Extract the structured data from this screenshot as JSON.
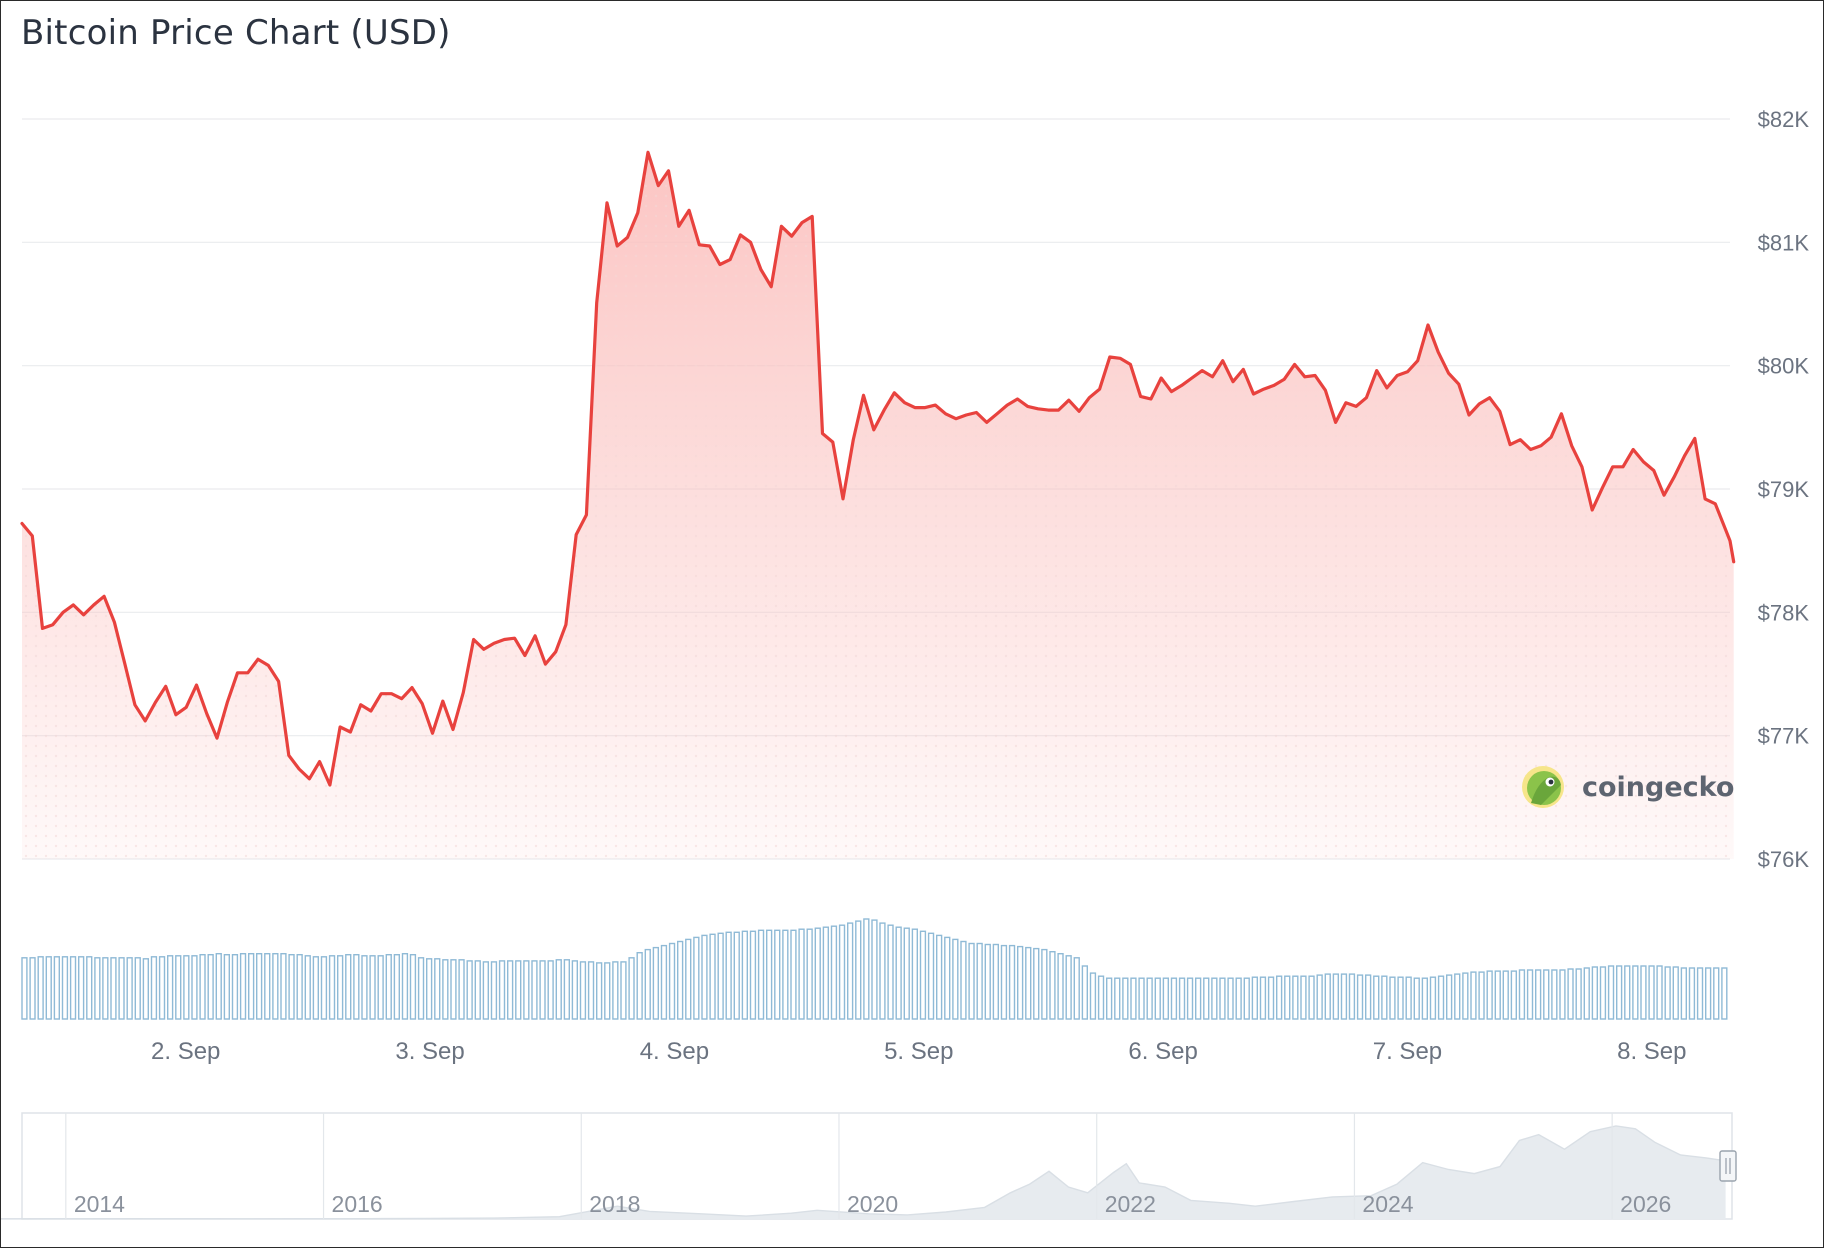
{
  "title": "Bitcoin Price Chart (USD)",
  "brand": {
    "name": "coingecko",
    "icon": "gecko-logo-icon"
  },
  "colors": {
    "line": "#e8423e",
    "area_top": "#fbc8c6",
    "grid": "#e9ebee",
    "volume": "#8fbad6",
    "navigator_fill": "#e7ebef",
    "navigator_line": "#d9dfe5"
  },
  "chart_data": {
    "type": "line",
    "title": "Bitcoin Price Chart (USD)",
    "ylim": [
      76000,
      82000
    ],
    "y_ticks": [
      {
        "value": 82000,
        "label": "$82K"
      },
      {
        "value": 81000,
        "label": "$81K"
      },
      {
        "value": 80000,
        "label": "$80K"
      },
      {
        "value": 79000,
        "label": "$79K"
      },
      {
        "value": 78000,
        "label": "$78K"
      },
      {
        "value": 77000,
        "label": "$77K"
      },
      {
        "value": 76000,
        "label": "$76K"
      }
    ],
    "x_range_days": [
      1.33,
      8.32
    ],
    "x_ticks": [
      {
        "day": 2,
        "label": "2. Sep"
      },
      {
        "day": 3,
        "label": "3. Sep"
      },
      {
        "day": 4,
        "label": "4. Sep"
      },
      {
        "day": 5,
        "label": "5. Sep"
      },
      {
        "day": 6,
        "label": "6. Sep"
      },
      {
        "day": 7,
        "label": "7. Sep"
      },
      {
        "day": 8,
        "label": "8. Sep"
      }
    ],
    "series": [
      {
        "points": [
          [
            1.33,
            78720
          ],
          [
            1.372,
            78620
          ],
          [
            1.414,
            77870
          ],
          [
            1.456,
            77900
          ],
          [
            1.498,
            78000
          ],
          [
            1.54,
            78060
          ],
          [
            1.582,
            77980
          ],
          [
            1.624,
            78060
          ],
          [
            1.666,
            78130
          ],
          [
            1.708,
            77920
          ],
          [
            1.75,
            77590
          ],
          [
            1.792,
            77250
          ],
          [
            1.834,
            77120
          ],
          [
            1.876,
            77270
          ],
          [
            1.918,
            77400
          ],
          [
            1.96,
            77170
          ],
          [
            2.002,
            77230
          ],
          [
            2.044,
            77410
          ],
          [
            2.086,
            77180
          ],
          [
            2.128,
            76980
          ],
          [
            2.17,
            77270
          ],
          [
            2.212,
            77510
          ],
          [
            2.254,
            77510
          ],
          [
            2.296,
            77620
          ],
          [
            2.338,
            77570
          ],
          [
            2.38,
            77440
          ],
          [
            2.422,
            76840
          ],
          [
            2.464,
            76730
          ],
          [
            2.506,
            76650
          ],
          [
            2.548,
            76790
          ],
          [
            2.59,
            76600
          ],
          [
            2.632,
            77070
          ],
          [
            2.674,
            77030
          ],
          [
            2.716,
            77250
          ],
          [
            2.758,
            77200
          ],
          [
            2.8,
            77340
          ],
          [
            2.842,
            77340
          ],
          [
            2.884,
            77300
          ],
          [
            2.926,
            77390
          ],
          [
            2.968,
            77260
          ],
          [
            3.01,
            77020
          ],
          [
            3.052,
            77280
          ],
          [
            3.094,
            77050
          ],
          [
            3.136,
            77350
          ],
          [
            3.178,
            77780
          ],
          [
            3.22,
            77700
          ],
          [
            3.262,
            77750
          ],
          [
            3.304,
            77780
          ],
          [
            3.346,
            77790
          ],
          [
            3.388,
            77650
          ],
          [
            3.43,
            77810
          ],
          [
            3.472,
            77580
          ],
          [
            3.514,
            77680
          ],
          [
            3.556,
            77900
          ],
          [
            3.598,
            78630
          ],
          [
            3.64,
            78790
          ],
          [
            3.682,
            80510
          ],
          [
            3.724,
            81320
          ],
          [
            3.766,
            80970
          ],
          [
            3.808,
            81040
          ],
          [
            3.85,
            81240
          ],
          [
            3.892,
            81730
          ],
          [
            3.934,
            81460
          ],
          [
            3.976,
            81580
          ],
          [
            4.018,
            81130
          ],
          [
            4.06,
            81260
          ],
          [
            4.102,
            80980
          ],
          [
            4.144,
            80970
          ],
          [
            4.186,
            80820
          ],
          [
            4.228,
            80860
          ],
          [
            4.27,
            81060
          ],
          [
            4.312,
            81000
          ],
          [
            4.354,
            80780
          ],
          [
            4.396,
            80640
          ],
          [
            4.438,
            81130
          ],
          [
            4.48,
            81050
          ],
          [
            4.522,
            81160
          ],
          [
            4.564,
            81210
          ],
          [
            4.606,
            79450
          ],
          [
            4.648,
            79380
          ],
          [
            4.69,
            78920
          ],
          [
            4.732,
            79400
          ],
          [
            4.774,
            79760
          ],
          [
            4.816,
            79480
          ],
          [
            4.858,
            79640
          ],
          [
            4.9,
            79780
          ],
          [
            4.942,
            79700
          ],
          [
            4.984,
            79660
          ],
          [
            5.026,
            79660
          ],
          [
            5.068,
            79680
          ],
          [
            5.11,
            79610
          ],
          [
            5.152,
            79570
          ],
          [
            5.194,
            79600
          ],
          [
            5.236,
            79620
          ],
          [
            5.278,
            79540
          ],
          [
            5.32,
            79610
          ],
          [
            5.362,
            79680
          ],
          [
            5.404,
            79730
          ],
          [
            5.446,
            79670
          ],
          [
            5.488,
            79650
          ],
          [
            5.53,
            79640
          ],
          [
            5.572,
            79640
          ],
          [
            5.614,
            79720
          ],
          [
            5.656,
            79630
          ],
          [
            5.698,
            79740
          ],
          [
            5.74,
            79810
          ],
          [
            5.782,
            80070
          ],
          [
            5.824,
            80060
          ],
          [
            5.866,
            80010
          ],
          [
            5.908,
            79750
          ],
          [
            5.95,
            79730
          ],
          [
            5.992,
            79900
          ],
          [
            6.034,
            79790
          ],
          [
            6.076,
            79840
          ],
          [
            6.118,
            79900
          ],
          [
            6.16,
            79960
          ],
          [
            6.202,
            79910
          ],
          [
            6.244,
            80040
          ],
          [
            6.286,
            79870
          ],
          [
            6.328,
            79970
          ],
          [
            6.37,
            79770
          ],
          [
            6.412,
            79810
          ],
          [
            6.454,
            79840
          ],
          [
            6.496,
            79890
          ],
          [
            6.538,
            80010
          ],
          [
            6.58,
            79910
          ],
          [
            6.622,
            79920
          ],
          [
            6.664,
            79800
          ],
          [
            6.706,
            79540
          ],
          [
            6.748,
            79700
          ],
          [
            6.79,
            79670
          ],
          [
            6.832,
            79740
          ],
          [
            6.874,
            79960
          ],
          [
            6.916,
            79820
          ],
          [
            6.958,
            79920
          ],
          [
            7.0,
            79950
          ],
          [
            7.042,
            80040
          ],
          [
            7.084,
            80330
          ],
          [
            7.126,
            80110
          ],
          [
            7.168,
            79940
          ],
          [
            7.21,
            79850
          ],
          [
            7.252,
            79600
          ],
          [
            7.294,
            79690
          ],
          [
            7.336,
            79740
          ],
          [
            7.378,
            79630
          ],
          [
            7.42,
            79360
          ],
          [
            7.462,
            79400
          ],
          [
            7.504,
            79320
          ],
          [
            7.546,
            79350
          ],
          [
            7.588,
            79420
          ],
          [
            7.63,
            79610
          ],
          [
            7.672,
            79350
          ],
          [
            7.714,
            79180
          ],
          [
            7.756,
            78830
          ],
          [
            7.798,
            79010
          ],
          [
            7.84,
            79180
          ],
          [
            7.882,
            79180
          ],
          [
            7.924,
            79320
          ],
          [
            7.966,
            79220
          ],
          [
            8.008,
            79150
          ],
          [
            8.05,
            78950
          ],
          [
            8.092,
            79100
          ],
          [
            8.134,
            79270
          ],
          [
            8.176,
            79410
          ],
          [
            8.218,
            78920
          ],
          [
            8.26,
            78880
          ],
          [
            8.302,
            78670
          ],
          [
            8.32,
            78580
          ],
          [
            8.335,
            78410
          ]
        ]
      }
    ],
    "volume": [
      0.6,
      0.6,
      0.61,
      0.61,
      0.61,
      0.61,
      0.61,
      0.61,
      0.61,
      0.6,
      0.6,
      0.6,
      0.6,
      0.6,
      0.6,
      0.59,
      0.61,
      0.61,
      0.62,
      0.62,
      0.62,
      0.62,
      0.63,
      0.63,
      0.64,
      0.63,
      0.63,
      0.64,
      0.64,
      0.64,
      0.64,
      0.64,
      0.64,
      0.63,
      0.63,
      0.62,
      0.61,
      0.61,
      0.62,
      0.62,
      0.63,
      0.63,
      0.62,
      0.62,
      0.62,
      0.63,
      0.63,
      0.64,
      0.63,
      0.6,
      0.59,
      0.59,
      0.58,
      0.58,
      0.58,
      0.57,
      0.57,
      0.56,
      0.56,
      0.57,
      0.57,
      0.57,
      0.57,
      0.57,
      0.57,
      0.57,
      0.58,
      0.58,
      0.57,
      0.56,
      0.56,
      0.55,
      0.55,
      0.56,
      0.56,
      0.6,
      0.65,
      0.68,
      0.7,
      0.72,
      0.74,
      0.76,
      0.78,
      0.8,
      0.82,
      0.83,
      0.84,
      0.85,
      0.85,
      0.86,
      0.86,
      0.87,
      0.87,
      0.87,
      0.87,
      0.87,
      0.88,
      0.88,
      0.89,
      0.9,
      0.91,
      0.92,
      0.94,
      0.96,
      0.98,
      0.97,
      0.94,
      0.92,
      0.9,
      0.89,
      0.88,
      0.86,
      0.84,
      0.82,
      0.8,
      0.78,
      0.76,
      0.74,
      0.74,
      0.73,
      0.73,
      0.72,
      0.72,
      0.71,
      0.7,
      0.69,
      0.68,
      0.66,
      0.64,
      0.62,
      0.6,
      0.52,
      0.45,
      0.42,
      0.4,
      0.4,
      0.4,
      0.4,
      0.4,
      0.4,
      0.4,
      0.4,
      0.4,
      0.4,
      0.4,
      0.4,
      0.4,
      0.4,
      0.4,
      0.4,
      0.4,
      0.4,
      0.41,
      0.41,
      0.41,
      0.42,
      0.42,
      0.42,
      0.42,
      0.42,
      0.43,
      0.44,
      0.44,
      0.44,
      0.44,
      0.43,
      0.43,
      0.42,
      0.42,
      0.41,
      0.41,
      0.41,
      0.4,
      0.4,
      0.41,
      0.42,
      0.43,
      0.44,
      0.45,
      0.46,
      0.46,
      0.47,
      0.47,
      0.47,
      0.47,
      0.48,
      0.48,
      0.48,
      0.48,
      0.48,
      0.48,
      0.49,
      0.49,
      0.5,
      0.51,
      0.51,
      0.52,
      0.52,
      0.52,
      0.52,
      0.52,
      0.52,
      0.52,
      0.51,
      0.51,
      0.5,
      0.5,
      0.5,
      0.5,
      0.5,
      0.5
    ],
    "navigator": {
      "labels": [
        "2014",
        "2016",
        "2018",
        "2020",
        "2022",
        "2024",
        "2026"
      ],
      "series": [
        [
          2013.0,
          0.002
        ],
        [
          2014.0,
          0.005
        ],
        [
          2015.0,
          0.004
        ],
        [
          2016.0,
          0.006
        ],
        [
          2016.5,
          0.01
        ],
        [
          2017.0,
          0.015
        ],
        [
          2017.5,
          0.04
        ],
        [
          2017.95,
          0.22
        ],
        [
          2018.2,
          0.13
        ],
        [
          2018.6,
          0.09
        ],
        [
          2018.95,
          0.05
        ],
        [
          2019.3,
          0.1
        ],
        [
          2019.5,
          0.15
        ],
        [
          2019.9,
          0.09
        ],
        [
          2020.2,
          0.07
        ],
        [
          2020.5,
          0.12
        ],
        [
          2020.8,
          0.2
        ],
        [
          2021.0,
          0.45
        ],
        [
          2021.15,
          0.6
        ],
        [
          2021.3,
          0.82
        ],
        [
          2021.45,
          0.55
        ],
        [
          2021.6,
          0.45
        ],
        [
          2021.8,
          0.8
        ],
        [
          2021.9,
          0.95
        ],
        [
          2022.0,
          0.62
        ],
        [
          2022.2,
          0.55
        ],
        [
          2022.4,
          0.32
        ],
        [
          2022.7,
          0.27
        ],
        [
          2022.9,
          0.22
        ],
        [
          2023.2,
          0.3
        ],
        [
          2023.5,
          0.38
        ],
        [
          2023.8,
          0.4
        ],
        [
          2024.0,
          0.6
        ],
        [
          2024.2,
          0.97
        ],
        [
          2024.4,
          0.85
        ],
        [
          2024.6,
          0.78
        ],
        [
          2024.8,
          0.9
        ],
        [
          2024.95,
          1.35
        ],
        [
          2025.1,
          1.45
        ],
        [
          2025.3,
          1.2
        ],
        [
          2025.5,
          1.5
        ],
        [
          2025.7,
          1.6
        ],
        [
          2025.85,
          1.55
        ],
        [
          2026.0,
          1.32
        ],
        [
          2026.2,
          1.1
        ],
        [
          2026.4,
          1.05
        ],
        [
          2026.55,
          1.0
        ]
      ]
    }
  }
}
